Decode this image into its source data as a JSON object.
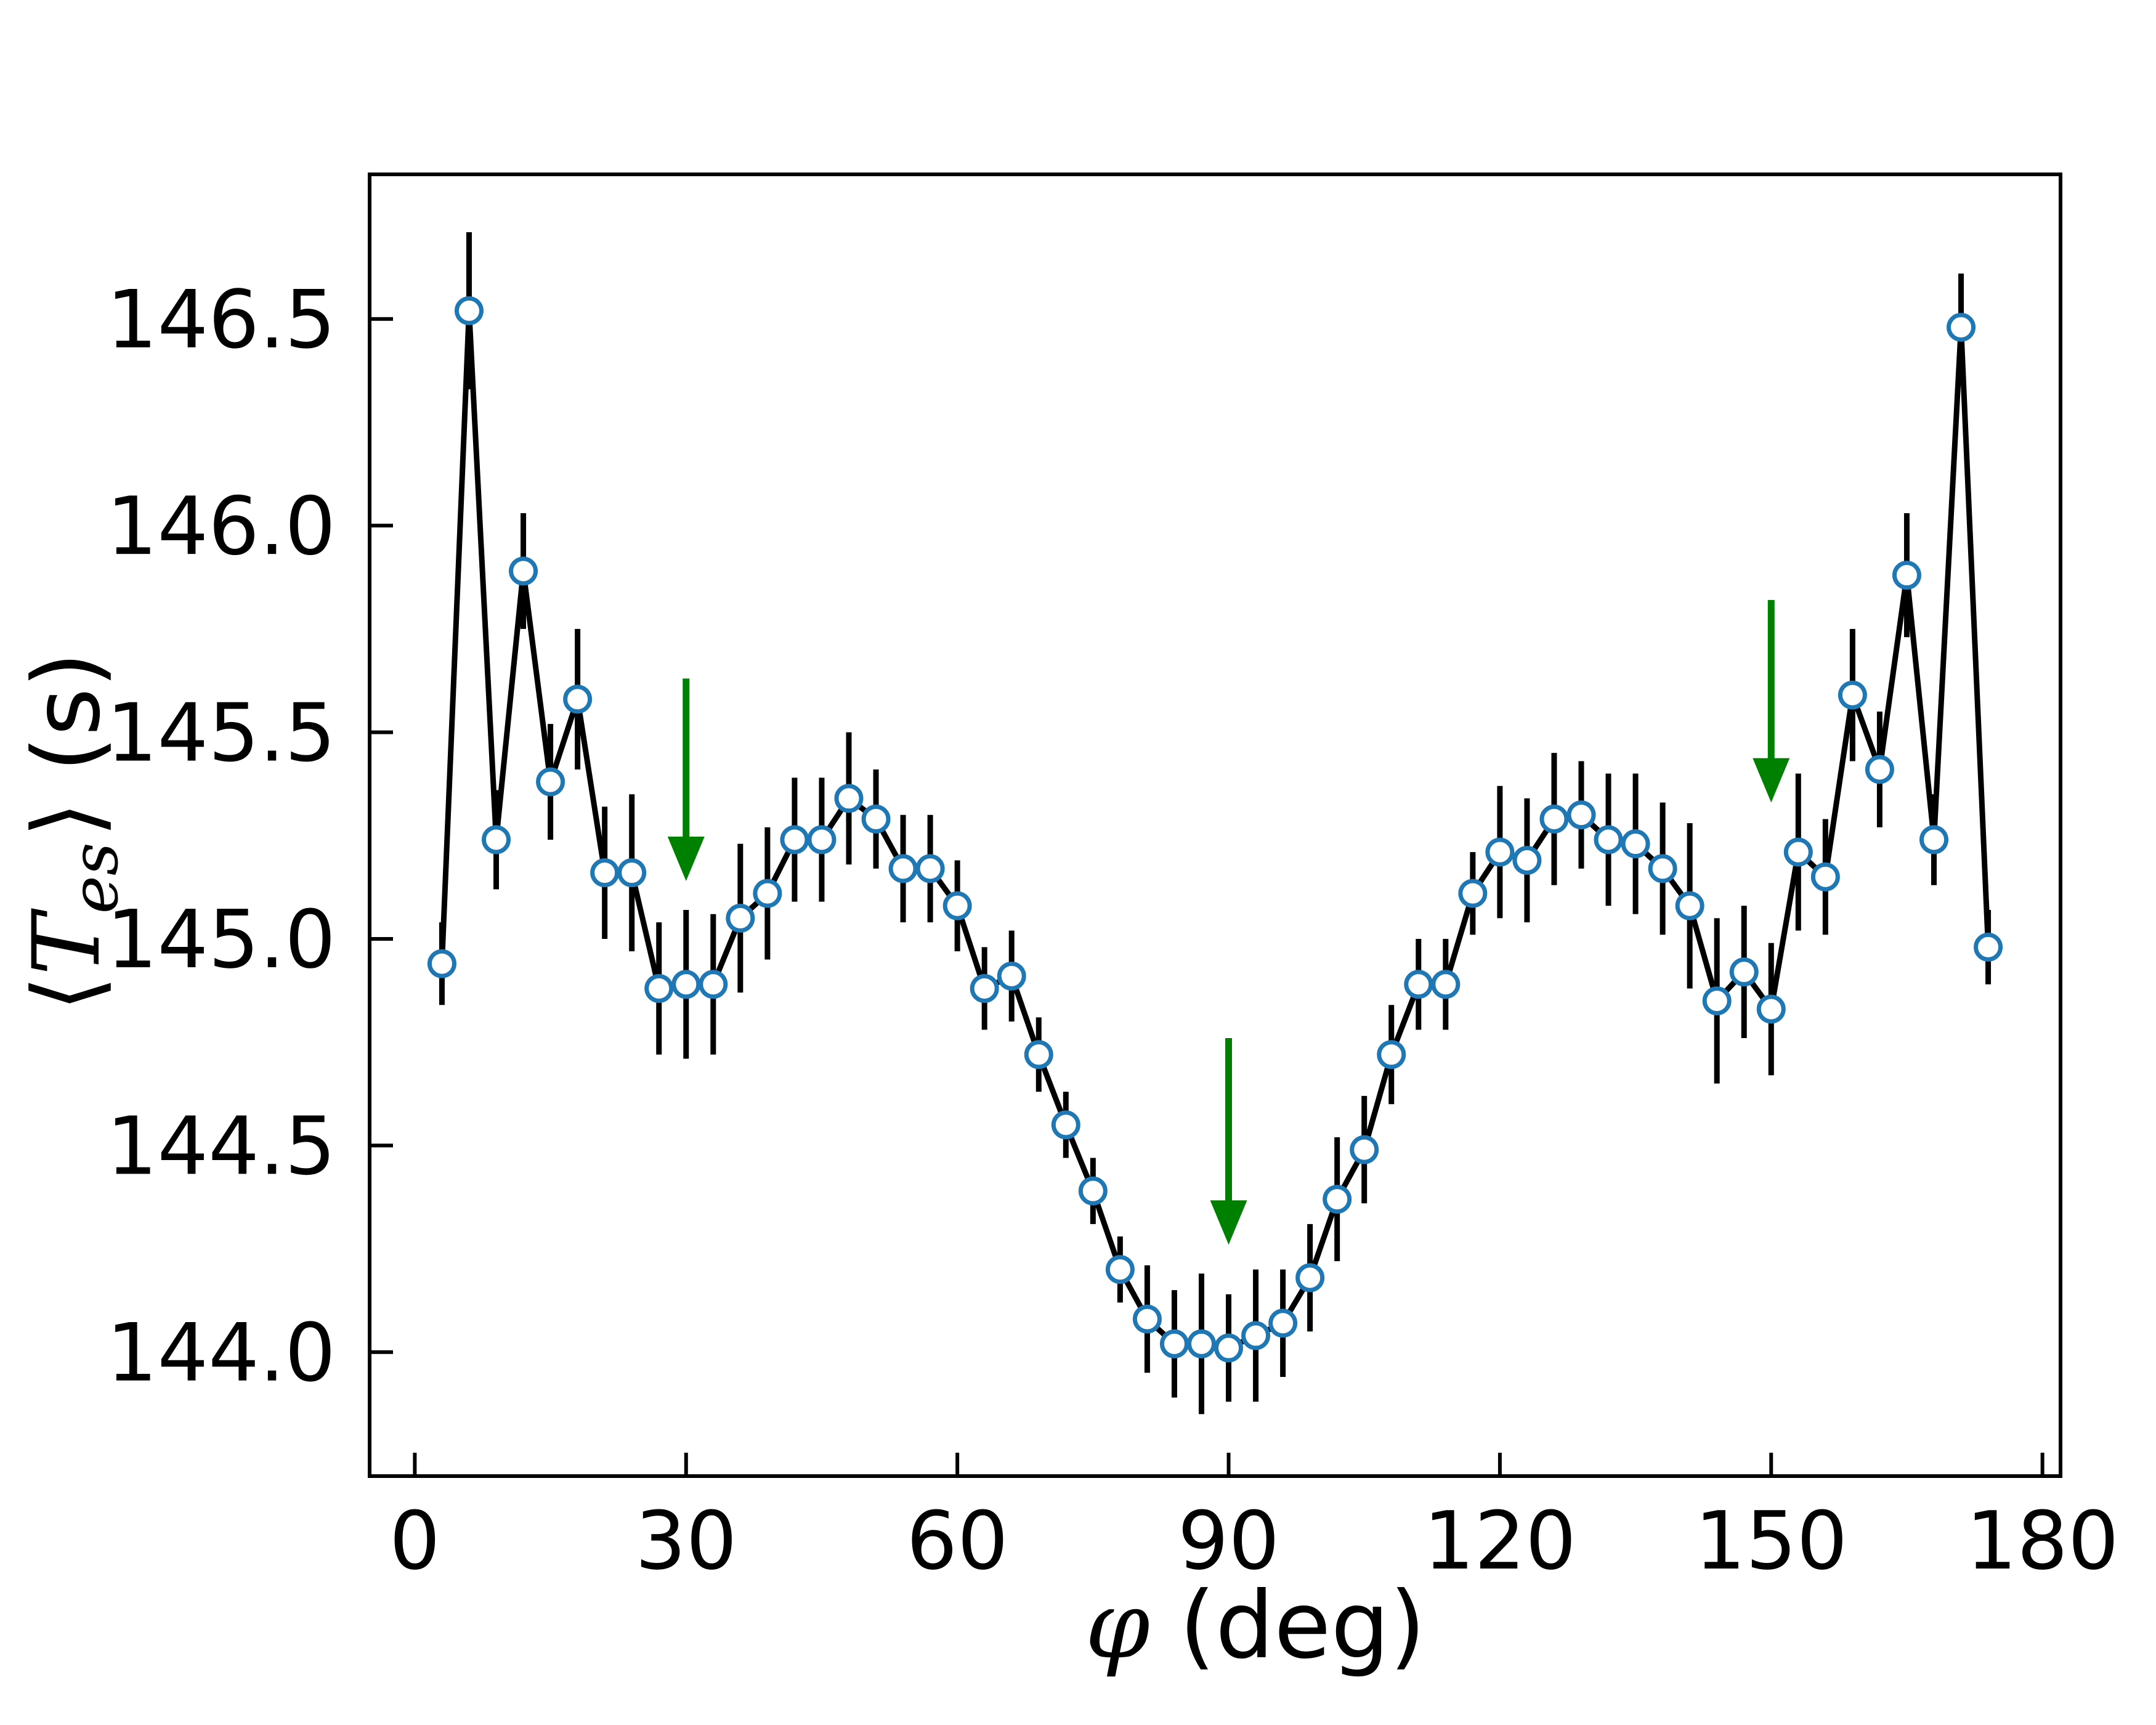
{
  "chart_data": {
    "type": "line",
    "xlabel": {
      "symbol": "φ",
      "text": " (deg)"
    },
    "ylabel": {
      "open": "⟨",
      "symbol": "T",
      "subscript": "es",
      "close": "⟩",
      "unit": " (s)"
    },
    "xlim": [
      -5,
      182
    ],
    "ylim": [
      143.7,
      146.85
    ],
    "xticks": [
      0,
      30,
      60,
      90,
      120,
      150,
      180
    ],
    "yticks": [
      144.0,
      144.5,
      145.0,
      145.5,
      146.0,
      146.5
    ],
    "ytick_labels": [
      "144.0",
      "144.5",
      "145.0",
      "145.5",
      "146.0",
      "146.5"
    ],
    "grid": false,
    "legend": "none",
    "colors": {
      "line": "#000000",
      "marker_edge": "#1f77b4",
      "marker_face": "#ffffff",
      "errorbar": "#000000",
      "arrow": "#008000"
    },
    "series": [
      {
        "x": [
          3,
          6,
          9,
          12,
          15,
          18,
          21,
          24,
          27,
          30,
          33,
          36,
          39,
          42,
          45,
          48,
          51,
          54,
          57,
          60,
          63,
          66,
          69,
          72,
          75,
          78,
          81,
          84,
          87,
          90,
          93,
          96,
          99,
          102,
          105,
          108,
          111,
          114,
          117,
          120,
          123,
          126,
          129,
          132,
          135,
          138,
          141,
          144,
          147,
          150,
          153,
          156,
          159,
          162,
          165,
          168,
          171,
          174
        ],
        "y": [
          144.94,
          146.52,
          145.24,
          145.89,
          145.38,
          145.58,
          145.16,
          145.16,
          144.88,
          144.89,
          144.89,
          145.05,
          145.11,
          145.24,
          145.24,
          145.34,
          145.29,
          145.17,
          145.17,
          145.08,
          144.88,
          144.91,
          144.72,
          144.55,
          144.39,
          144.2,
          144.08,
          144.02,
          144.02,
          144.01,
          144.04,
          144.07,
          144.18,
          144.37,
          144.49,
          144.72,
          144.89,
          144.89,
          145.11,
          145.21,
          145.19,
          145.29,
          145.3,
          145.24,
          145.23,
          145.17,
          145.08,
          144.85,
          144.92,
          144.83,
          145.21,
          145.15,
          145.59,
          145.41,
          145.88,
          145.24,
          146.48,
          144.98
        ],
        "yerr": [
          0.1,
          0.19,
          0.12,
          0.14,
          0.14,
          0.17,
          0.16,
          0.19,
          0.16,
          0.18,
          0.17,
          0.18,
          0.16,
          0.15,
          0.15,
          0.16,
          0.12,
          0.13,
          0.13,
          0.11,
          0.1,
          0.11,
          0.09,
          0.08,
          0.08,
          0.08,
          0.13,
          0.13,
          0.17,
          0.13,
          0.16,
          0.13,
          0.13,
          0.15,
          0.13,
          0.12,
          0.11,
          0.11,
          0.1,
          0.16,
          0.15,
          0.16,
          0.13,
          0.16,
          0.17,
          0.16,
          0.2,
          0.2,
          0.16,
          0.16,
          0.19,
          0.14,
          0.16,
          0.14,
          0.15,
          0.11,
          0.13,
          0.09
        ]
      }
    ],
    "annotations": [
      {
        "type": "arrow",
        "x": 30,
        "y_from": 145.63,
        "y_to": 145.14
      },
      {
        "type": "arrow",
        "x": 90,
        "y_from": 144.76,
        "y_to": 144.26
      },
      {
        "type": "arrow",
        "x": 150,
        "y_from": 145.82,
        "y_to": 145.33
      }
    ]
  }
}
